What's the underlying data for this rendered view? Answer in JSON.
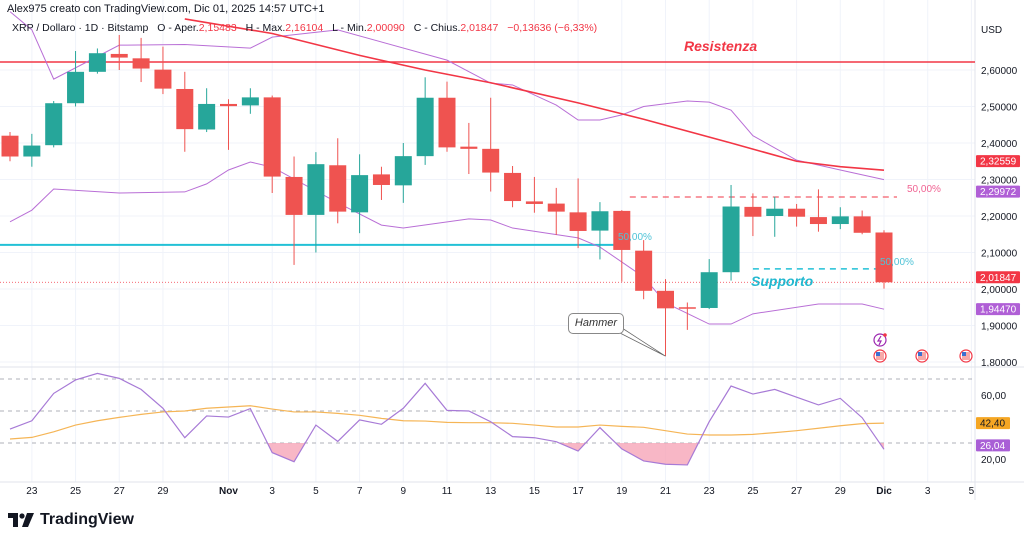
{
  "header": {
    "credit": "Alex975 creato con TradingView.com, Dic 01, 2025 14:57 UTC+1",
    "symbol": "XRP / Dollaro · 1D · Bitstamp",
    "open_label": "O - Aper.",
    "open": "2,15483",
    "high_label": "H - Max.",
    "high": "2,16104",
    "low_label": "L - Min.",
    "low": "2,00090",
    "close_label": "C - Chius.",
    "close": "2,01847",
    "change": "−0,13636 (−6,33%)"
  },
  "brand": "TradingView",
  "colors": {
    "up": "#26a69a",
    "down": "#ef5350",
    "ma": "#f23645",
    "bands": "#b96fd6",
    "rsi": "#a77ad6",
    "rsi_ma": "#f5b556",
    "support": "#22c1d6",
    "resistance": "#f23645"
  },
  "annotations": {
    "resistance_label": "Resistenza",
    "support_label": "Supporto",
    "hammer_label": "Hammer",
    "fib_red_label": "50,00%",
    "fib_cyan_label": "50,00%",
    "fib_left_label": "50,00%"
  },
  "chart_data": [
    {
      "type": "candlestick",
      "currency": "USD",
      "ylim": [
        1.78,
        2.75
      ],
      "y_ticks": [
        "2,60000",
        "2,50000",
        "2,40000",
        "2,30000",
        "2,20000",
        "2,10000",
        "2,00000",
        "1,90000",
        "1,80000"
      ],
      "y_tick_values": [
        2.6,
        2.5,
        2.4,
        2.3,
        2.2,
        2.1,
        2.0,
        1.9,
        1.8
      ],
      "price_tags": [
        {
          "text": "2,32559",
          "value": 2.32559,
          "color": "#f23645"
        },
        {
          "text": "2,29972",
          "value": 2.29972,
          "color": "#b05fd6"
        },
        {
          "text": "2,01847",
          "value": 2.01847,
          "color": "#f23645"
        },
        {
          "text": "1,94470",
          "value": 1.9447,
          "color": "#b05fd6"
        }
      ],
      "x_tick_labels": [
        "23",
        "25",
        "27",
        "29",
        "Nov",
        "3",
        "5",
        "7",
        "9",
        "11",
        "13",
        "15",
        "17",
        "19",
        "21",
        "23",
        "25",
        "27",
        "29",
        "Dic",
        "3",
        "5"
      ],
      "x_tick_dates": [
        "2025-10-23",
        "2025-10-25",
        "2025-10-27",
        "2025-10-29",
        "2025-11-01",
        "2025-11-03",
        "2025-11-05",
        "2025-11-07",
        "2025-11-09",
        "2025-11-11",
        "2025-11-13",
        "2025-11-15",
        "2025-11-17",
        "2025-11-19",
        "2025-11-21",
        "2025-11-23",
        "2025-11-25",
        "2025-11-27",
        "2025-11-29",
        "2025-12-01",
        "2025-12-03",
        "2025-12-05"
      ],
      "x_start": "2025-10-22",
      "candles": [
        [
          "2025-10-22",
          2.42,
          2.43,
          2.35,
          2.363
        ],
        [
          "2025-10-23",
          2.363,
          2.425,
          2.335,
          2.393
        ],
        [
          "2025-10-24",
          2.394,
          2.515,
          2.388,
          2.509
        ],
        [
          "2025-10-25",
          2.509,
          2.652,
          2.5,
          2.595
        ],
        [
          "2025-10-26",
          2.595,
          2.659,
          2.59,
          2.646
        ],
        [
          "2025-10-27",
          2.644,
          2.696,
          2.6,
          2.634
        ],
        [
          "2025-10-28",
          2.632,
          2.688,
          2.567,
          2.604
        ],
        [
          "2025-10-29",
          2.601,
          2.664,
          2.534,
          2.549
        ],
        [
          "2025-10-30",
          2.548,
          2.595,
          2.376,
          2.438
        ],
        [
          "2025-10-31",
          2.437,
          2.55,
          2.43,
          2.507
        ],
        [
          "2025-11-01",
          2.507,
          2.52,
          2.381,
          2.501
        ],
        [
          "2025-11-02",
          2.503,
          2.55,
          2.48,
          2.525
        ],
        [
          "2025-11-03",
          2.525,
          2.53,
          2.263,
          2.308
        ],
        [
          "2025-11-04",
          2.307,
          2.363,
          2.066,
          2.203
        ],
        [
          "2025-11-05",
          2.203,
          2.375,
          2.1,
          2.342
        ],
        [
          "2025-11-06",
          2.339,
          2.413,
          2.18,
          2.212
        ],
        [
          "2025-11-07",
          2.21,
          2.369,
          2.153,
          2.312
        ],
        [
          "2025-11-08",
          2.314,
          2.335,
          2.244,
          2.285
        ],
        [
          "2025-11-09",
          2.284,
          2.4,
          2.236,
          2.364
        ],
        [
          "2025-11-10",
          2.364,
          2.58,
          2.34,
          2.524
        ],
        [
          "2025-11-11",
          2.524,
          2.568,
          2.376,
          2.388
        ],
        [
          "2025-11-12",
          2.39,
          2.455,
          2.315,
          2.384
        ],
        [
          "2025-11-13",
          2.384,
          2.524,
          2.267,
          2.319
        ],
        [
          "2025-11-14",
          2.318,
          2.337,
          2.224,
          2.241
        ],
        [
          "2025-11-15",
          2.24,
          2.307,
          2.209,
          2.233
        ],
        [
          "2025-11-16",
          2.234,
          2.277,
          2.148,
          2.212
        ],
        [
          "2025-11-17",
          2.21,
          2.303,
          2.112,
          2.159
        ],
        [
          "2025-11-18",
          2.16,
          2.238,
          2.081,
          2.213
        ],
        [
          "2025-11-19",
          2.214,
          2.216,
          2.02,
          2.107
        ],
        [
          "2025-11-20",
          2.105,
          2.134,
          1.972,
          1.995
        ],
        [
          "2025-11-21",
          1.995,
          2.027,
          1.816,
          1.947
        ],
        [
          "2025-11-22",
          1.95,
          1.963,
          1.888,
          1.948
        ],
        [
          "2025-11-23",
          1.948,
          2.082,
          1.945,
          2.046
        ],
        [
          "2025-11-24",
          2.046,
          2.285,
          2.023,
          2.226
        ],
        [
          "2025-11-25",
          2.225,
          2.262,
          2.145,
          2.198
        ],
        [
          "2025-11-26",
          2.2,
          2.253,
          2.143,
          2.22
        ],
        [
          "2025-11-27",
          2.22,
          2.233,
          2.171,
          2.198
        ],
        [
          "2025-11-28",
          2.197,
          2.273,
          2.157,
          2.178
        ],
        [
          "2025-11-29",
          2.178,
          2.224,
          2.164,
          2.199
        ],
        [
          "2025-11-30",
          2.199,
          2.215,
          2.15,
          2.154
        ],
        [
          "2025-12-01",
          2.15483,
          2.16104,
          2.0009,
          2.01847
        ]
      ],
      "moving_average": [
        [
          "2025-10-30",
          2.74
        ],
        [
          "2025-11-03",
          2.7
        ],
        [
          "2025-11-07",
          2.64
        ],
        [
          "2025-11-10",
          2.6
        ],
        [
          "2025-11-13",
          2.565
        ],
        [
          "2025-11-17",
          2.51
        ],
        [
          "2025-11-20",
          2.465
        ],
        [
          "2025-11-24",
          2.4
        ],
        [
          "2025-11-27",
          2.35
        ],
        [
          "2025-11-29",
          2.335
        ],
        [
          "2025-12-01",
          2.32559
        ]
      ],
      "bb_upper": [
        [
          "2025-10-22",
          2.76
        ],
        [
          "2025-10-23",
          2.71
        ],
        [
          "2025-10-24",
          2.575
        ],
        [
          "2025-10-27",
          2.668
        ],
        [
          "2025-10-30",
          2.67
        ],
        [
          "2025-11-02",
          2.66
        ],
        [
          "2025-11-03",
          2.69
        ],
        [
          "2025-11-06",
          2.71
        ],
        [
          "2025-11-11",
          2.627
        ],
        [
          "2025-11-13",
          2.564
        ],
        [
          "2025-11-14",
          2.559
        ],
        [
          "2025-11-16",
          2.504
        ],
        [
          "2025-11-17",
          2.463
        ],
        [
          "2025-11-18",
          2.463
        ],
        [
          "2025-11-19",
          2.477
        ],
        [
          "2025-11-20",
          2.5
        ],
        [
          "2025-11-22",
          2.515
        ],
        [
          "2025-11-23",
          2.512
        ],
        [
          "2025-11-24",
          2.49
        ],
        [
          "2025-11-25",
          2.42
        ],
        [
          "2025-11-27",
          2.353
        ],
        [
          "2025-11-29",
          2.326
        ],
        [
          "2025-12-01",
          2.29972
        ]
      ],
      "bb_lower": [
        [
          "2025-10-22",
          2.184
        ],
        [
          "2025-10-23",
          2.216
        ],
        [
          "2025-10-24",
          2.274
        ],
        [
          "2025-10-27",
          2.263
        ],
        [
          "2025-10-30",
          2.266
        ],
        [
          "2025-10-31",
          2.288
        ],
        [
          "2025-11-01",
          2.326
        ],
        [
          "2025-11-02",
          2.348
        ],
        [
          "2025-11-03",
          2.334
        ],
        [
          "2025-11-06",
          2.236
        ],
        [
          "2025-11-08",
          2.175
        ],
        [
          "2025-11-09",
          2.167
        ],
        [
          "2025-11-12",
          2.192
        ],
        [
          "2025-11-13",
          2.189
        ],
        [
          "2025-11-14",
          2.167
        ],
        [
          "2025-11-17",
          2.14
        ],
        [
          "2025-11-18",
          2.115
        ],
        [
          "2025-11-20",
          2.033
        ],
        [
          "2025-11-21",
          1.962
        ],
        [
          "2025-11-23",
          1.904
        ],
        [
          "2025-11-24",
          1.904
        ],
        [
          "2025-11-25",
          1.932
        ],
        [
          "2025-11-28",
          1.959
        ],
        [
          "2025-11-30",
          1.959
        ],
        [
          "2025-12-01",
          1.9447
        ]
      ],
      "levels": {
        "resistance": 2.622,
        "support": 2.121,
        "fib_red": 2.252,
        "fib_cyan": 2.055,
        "last_price": 2.01847
      }
    },
    {
      "type": "line",
      "indicator": "RSI",
      "ylim": [
        0,
        80
      ],
      "y_ticks": [
        "60,00",
        "20,00"
      ],
      "y_tick_values": [
        60,
        20
      ],
      "bands": [
        70,
        50,
        30
      ],
      "tags": [
        {
          "text": "42,40",
          "value": 42.4,
          "color": "#f5a623"
        },
        {
          "text": "26,04",
          "value": 26.04,
          "color": "#a95fd6"
        }
      ],
      "rsi": [
        38.7,
        43.9,
        61,
        69.4,
        73.5,
        70.4,
        63.5,
        51.7,
        33.3,
        46.9,
        46.2,
        51.5,
        24,
        18.3,
        41.2,
        31,
        44.4,
        41.7,
        51.7,
        67.3,
        50.4,
        50,
        43.3,
        34,
        33.3,
        30.8,
        25,
        39.6,
        26.3,
        18.8,
        16.7,
        16.3,
        43.3,
        65.6,
        60.6,
        63.5,
        58.6,
        53.8,
        57.9,
        45.8,
        26.04
      ],
      "rsi_ma": [
        32.5,
        33.5,
        37,
        41.2,
        43.9,
        46,
        47.9,
        49.4,
        50,
        51.7,
        52.5,
        53.3,
        51.2,
        49.4,
        49.4,
        48.5,
        47.3,
        45.4,
        43.9,
        43.7,
        42.9,
        42.7,
        42.7,
        42.3,
        41.2,
        40,
        40,
        41.2,
        40.4,
        39.8,
        37.7,
        35.6,
        35,
        35,
        35.4,
        36.5,
        37.7,
        39.2,
        40.8,
        42.1,
        42.4
      ]
    }
  ],
  "icons": {
    "event_flash": "flash-icon",
    "flags": [
      "us-flag-icon",
      "us-flag-icon",
      "us-flag-icon"
    ],
    "logo": "tradingview-logo-icon"
  }
}
